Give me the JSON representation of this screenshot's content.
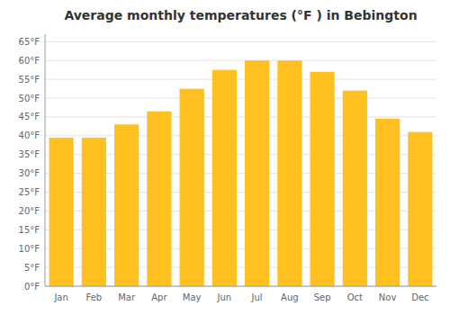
{
  "chart_data": {
    "type": "bar",
    "title": "Average monthly temperatures (°F ) in Bebington",
    "categories": [
      "Jan",
      "Feb",
      "Mar",
      "Apr",
      "May",
      "Jun",
      "Jul",
      "Aug",
      "Sep",
      "Oct",
      "Nov",
      "Dec"
    ],
    "values": [
      39.5,
      39.5,
      43.0,
      46.5,
      52.5,
      57.5,
      60.0,
      60.0,
      57.0,
      52.0,
      44.5,
      41.0
    ],
    "color": "#FFC020",
    "ylim": [
      0,
      67
    ],
    "yticks": [
      {
        "value": 0,
        "label": "0°F"
      },
      {
        "value": 5,
        "label": "5°F"
      },
      {
        "value": 10,
        "label": "10°F"
      },
      {
        "value": 15,
        "label": "15°F"
      },
      {
        "value": 20,
        "label": "20°F"
      },
      {
        "value": 25,
        "label": "25°F"
      },
      {
        "value": 30,
        "label": "30°F"
      },
      {
        "value": 35,
        "label": "35°F"
      },
      {
        "value": 40,
        "label": "40°F"
      },
      {
        "value": 45,
        "label": "45°F"
      },
      {
        "value": 50,
        "label": "50°F"
      },
      {
        "value": 55,
        "label": "55°F"
      },
      {
        "value": 60,
        "label": "60°F"
      },
      {
        "value": 65,
        "label": "65°F"
      }
    ],
    "grid": true
  }
}
